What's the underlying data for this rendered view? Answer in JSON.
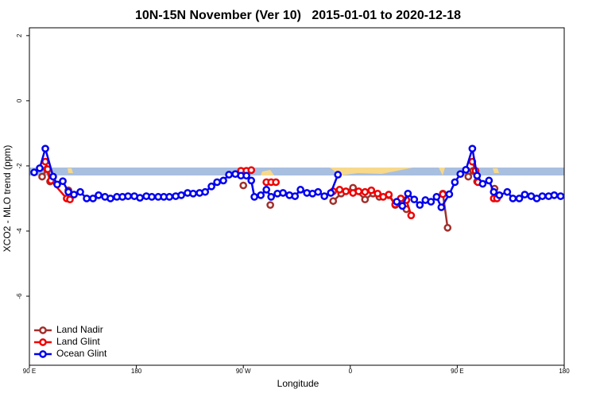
{
  "chart_data": {
    "type": "line",
    "title": "10N-15N November (Ver 10)   2015-01-01 to 2020-12-18",
    "x_label": "Longitude",
    "y_label": "XCO2 - MLO trend (ppm)",
    "xlim": [
      90,
      540
    ],
    "xticks": [
      {
        "value": 90,
        "label": "90 E"
      },
      {
        "value": 180,
        "label": "180"
      },
      {
        "value": 270,
        "label": "90 W"
      },
      {
        "value": 360,
        "label": "0"
      },
      {
        "value": 450,
        "label": "90 E"
      },
      {
        "value": 540,
        "label": "180"
      }
    ],
    "ylim": [
      -8.12,
      2.24
    ],
    "yticks": [
      -6,
      -4,
      -2,
      0,
      2
    ],
    "legend": "bottom-left",
    "series": [
      {
        "name": "Land Nadir",
        "color": "#a0302c",
        "x": [
          100.7,
          104.7,
          107.4,
          115,
          122.8,
          200,
          270,
          280,
          292.7,
          330,
          345.6,
          352.3,
          362.3,
          372.4,
          379.1,
          384.4,
          392.4,
          397.8,
          407.2,
          420,
          437.9,
          441.9,
          450,
          459.3,
          463.4,
          466.7,
          475,
          481.4
        ],
        "values": [
          -2.33,
          -2.1,
          -2.48,
          null,
          -2.75,
          null,
          -2.6,
          null,
          -3.2,
          null,
          -3.08,
          -2.85,
          -2.67,
          -3.03,
          -2.85,
          -2.95,
          -2.9,
          -3.2,
          -3.33,
          null,
          -2.85,
          -3.9,
          null,
          -2.33,
          -2.15,
          -2.48,
          null,
          -2.7
        ]
      },
      {
        "name": "Land Glint",
        "color": "#ee0000",
        "x": [
          103.4,
          105.4,
          108.1,
          121.4,
          124.1,
          200,
          268,
          272.6,
          276.7,
          280,
          289.4,
          293.4,
          297.4,
          320,
          345.6,
          351,
          356.3,
          362.3,
          367,
          372.4,
          377.7,
          383,
          387.7,
          392.4,
          397.8,
          402.5,
          407.2,
          411.2,
          430,
          437.9,
          450,
          462.7,
          465.4,
          467.4,
          475,
          480.7,
          483.4
        ],
        "values": [
          -1.87,
          -2.1,
          -2.45,
          -3.0,
          -3.03,
          null,
          -2.15,
          -2.15,
          -2.13,
          null,
          -2.5,
          -2.5,
          -2.5,
          null,
          -2.78,
          -2.73,
          -2.78,
          -2.83,
          -2.78,
          -2.8,
          -2.75,
          -2.85,
          -2.95,
          -2.88,
          -3.18,
          -3.0,
          -3.05,
          -3.52,
          null,
          -2.87,
          null,
          -1.87,
          -2.15,
          -2.5,
          null,
          -3.0,
          -3.0
        ]
      },
      {
        "name": "Ocean Glint",
        "color": "#0000ee",
        "x": [
          94,
          98.7,
          103.4,
          110,
          113.4,
          118.1,
          122.8,
          127.5,
          132.8,
          138.2,
          143.5,
          148.2,
          153.6,
          158.2,
          163.6,
          168.3,
          173,
          178.3,
          183,
          188.4,
          193,
          198.4,
          203.1,
          207.8,
          213.1,
          217.8,
          223.1,
          227.8,
          233.2,
          237.9,
          243.2,
          247.9,
          253.2,
          257.9,
          263.3,
          268,
          272.6,
          276.7,
          279.3,
          284.7,
          289.4,
          293.4,
          298.7,
          303.4,
          308.8,
          313.5,
          318.1,
          323.5,
          328.2,
          332.9,
          338.2,
          343.6,
          349.6,
          380,
          399.1,
          403.8,
          408.5,
          413.8,
          418.5,
          423.2,
          427.9,
          432.6,
          436.6,
          443.3,
          448,
          452.6,
          457.3,
          462.7,
          466.7,
          471.4,
          476.7,
          480.7,
          485.4,
          492.1,
          496.8,
          502.2,
          506.8,
          512.2,
          516.9,
          521.6,
          526.9,
          531.6,
          537
        ],
        "values": [
          -2.2,
          -2.07,
          -1.47,
          -2.33,
          -2.57,
          -2.47,
          -2.8,
          -2.88,
          -2.8,
          -3.0,
          -3.0,
          -2.9,
          -2.95,
          -3.0,
          -2.95,
          -2.95,
          -2.93,
          -2.93,
          -2.98,
          -2.93,
          -2.95,
          -2.95,
          -2.95,
          -2.95,
          -2.93,
          -2.9,
          -2.83,
          -2.85,
          -2.83,
          -2.8,
          -2.63,
          -2.5,
          -2.45,
          -2.27,
          -2.25,
          -2.3,
          -2.3,
          -2.45,
          -2.95,
          -2.9,
          -2.73,
          -2.95,
          -2.85,
          -2.83,
          -2.9,
          -2.93,
          -2.73,
          -2.83,
          -2.85,
          -2.8,
          -2.93,
          -2.83,
          -2.27,
          null,
          -3.1,
          -3.23,
          -2.85,
          -3.03,
          -3.2,
          -3.05,
          -3.1,
          -2.95,
          -3.27,
          -2.87,
          -2.5,
          -2.25,
          -2.12,
          -1.47,
          -2.3,
          -2.55,
          -2.45,
          -2.8,
          -2.9,
          -2.8,
          -3.0,
          -3.0,
          -2.88,
          -2.93,
          -3.0,
          -2.93,
          -2.93,
          -2.9,
          -2.93
        ]
      }
    ]
  }
}
